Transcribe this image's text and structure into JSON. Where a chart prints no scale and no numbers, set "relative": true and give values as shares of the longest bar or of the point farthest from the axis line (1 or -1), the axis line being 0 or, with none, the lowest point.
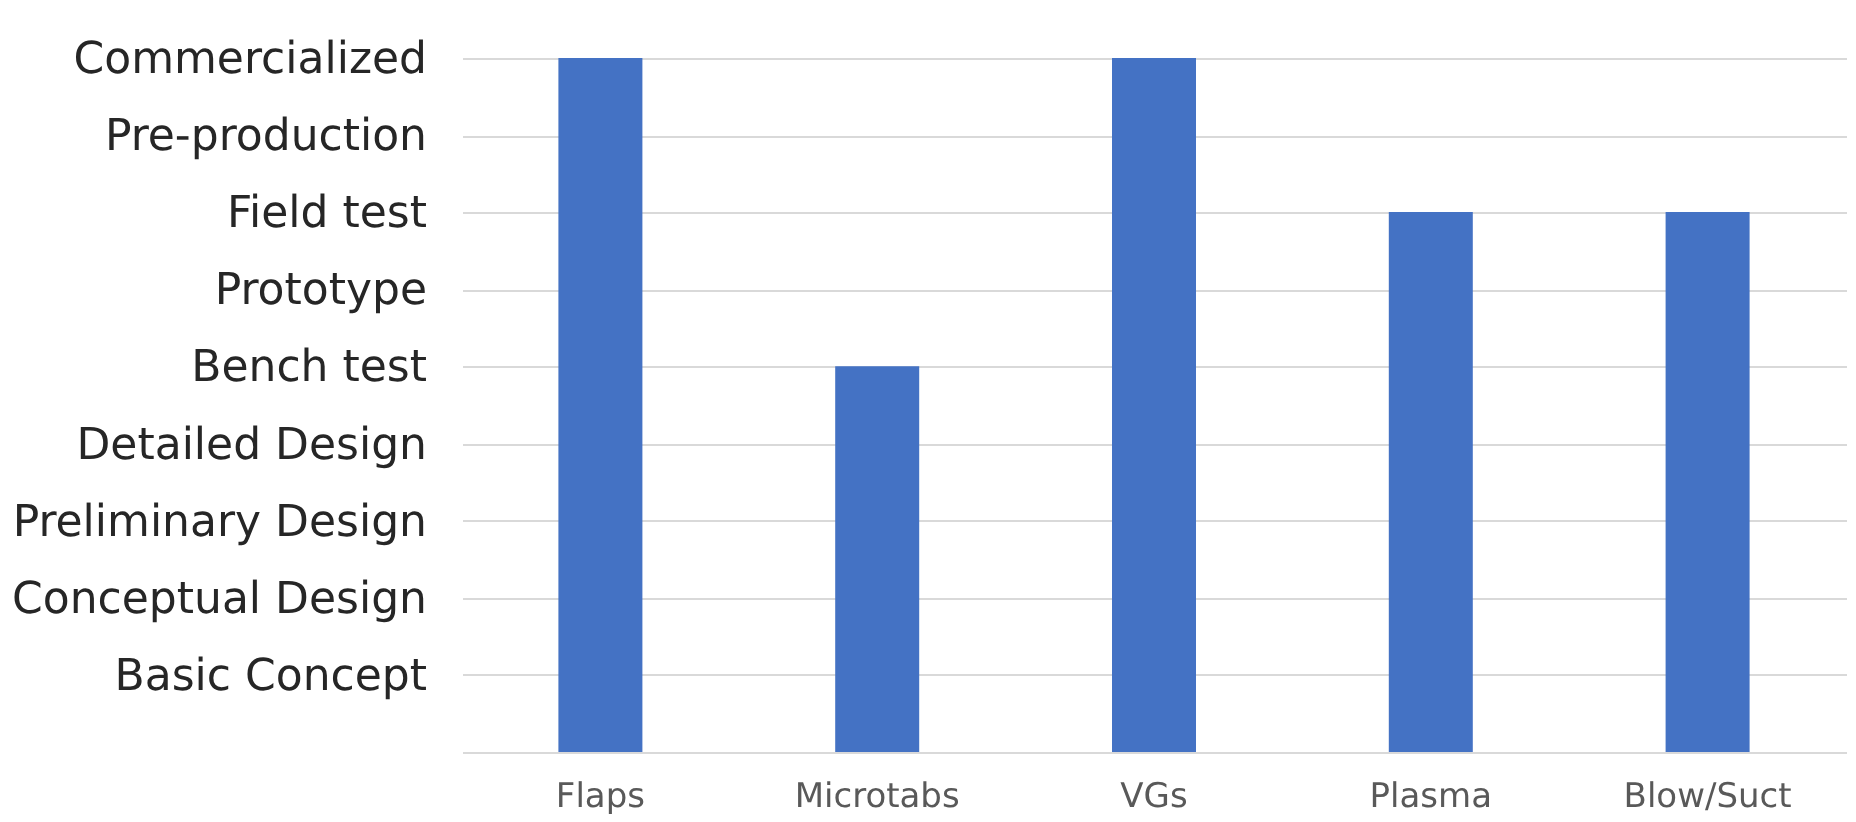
{
  "chart_data": {
    "type": "bar",
    "categories": [
      "Flaps",
      "Microtabs",
      "VGs",
      "Plasma",
      "Blow/Suct"
    ],
    "values": [
      1,
      0.556,
      1,
      0.778,
      0.778
    ],
    "color": "#4472c4",
    "relative": true,
    "annotations": [
      "Commercialized",
      "Pre-production",
      "Field test",
      "Prototype",
      "Bench test",
      "Detailed Design",
      "Preliminary Design",
      "Conceptual Design",
      "Basic Concept"
    ],
    "grid": "y"
  }
}
